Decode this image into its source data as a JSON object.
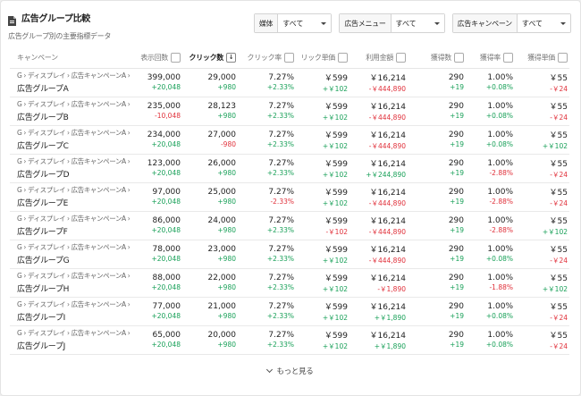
{
  "header": {
    "title": "広告グループ比較",
    "subtitle": "広告グループ別の主要指標データ"
  },
  "filters": [
    {
      "label": "媒体",
      "value": "すべて"
    },
    {
      "label": "広告メニュー",
      "value": "すべて"
    },
    {
      "label": "広告キャンペーン",
      "value": "すべて"
    }
  ],
  "table": {
    "columns": {
      "campaign": "キャンペーン",
      "impressions": "表示回数",
      "clicks": "クリック数",
      "ctr": "クリック率",
      "cpc": "リック単価",
      "cost": "利用金額",
      "conversions": "獲得数",
      "cvr": "獲得率",
      "cpa": "獲得単価"
    },
    "sort_icon": "↓",
    "rows": [
      {
        "path": "G › ディスプレイ › 広告キャンペーンA ›",
        "name": "広告グループA",
        "impressions": "399,000",
        "impressions_delta": "+20,048",
        "clicks": "29,000",
        "clicks_delta": "+980",
        "ctr": "7.27%",
        "ctr_delta": "+2.33%",
        "cpc": "￥599",
        "cpc_delta": "+￥102",
        "cost": "￥16,214",
        "cost_delta": "-￥444,890",
        "conv": "290",
        "conv_delta": "+19",
        "cvr": "1.00%",
        "cvr_delta": "+0.08%",
        "cpa": "￥55",
        "cpa_delta": "-￥24"
      },
      {
        "path": "G › ディスプレイ › 広告キャンペーンA ›",
        "name": "広告グループB",
        "impressions": "235,000",
        "impressions_delta": "-10,048",
        "clicks": "28,123",
        "clicks_delta": "+980",
        "ctr": "7.27%",
        "ctr_delta": "+2.33%",
        "cpc": "￥599",
        "cpc_delta": "+￥102",
        "cost": "￥16,214",
        "cost_delta": "-￥444,890",
        "conv": "290",
        "conv_delta": "+19",
        "cvr": "1.00%",
        "cvr_delta": "+0.08%",
        "cpa": "￥55",
        "cpa_delta": "-￥24"
      },
      {
        "path": "G › ディスプレイ › 広告キャンペーンA ›",
        "name": "広告グループC",
        "impressions": "234,000",
        "impressions_delta": "+20,048",
        "clicks": "27,000",
        "clicks_delta": "-980",
        "ctr": "7.27%",
        "ctr_delta": "+2.33%",
        "cpc": "￥599",
        "cpc_delta": "+￥102",
        "cost": "￥16,214",
        "cost_delta": "-￥444,890",
        "conv": "290",
        "conv_delta": "+19",
        "cvr": "1.00%",
        "cvr_delta": "+0.08%",
        "cpa": "￥55",
        "cpa_delta": "+￥102"
      },
      {
        "path": "G › ディスプレイ › 広告キャンペーンA ›",
        "name": "広告グループD",
        "impressions": "123,000",
        "impressions_delta": "+20,048",
        "clicks": "26,000",
        "clicks_delta": "+980",
        "ctr": "7.27%",
        "ctr_delta": "+2.33%",
        "cpc": "￥599",
        "cpc_delta": "+￥102",
        "cost": "￥16,214",
        "cost_delta": "+￥244,890",
        "conv": "290",
        "conv_delta": "+19",
        "cvr": "1.00%",
        "cvr_delta": "-2.88%",
        "cpa": "￥55",
        "cpa_delta": "-￥24"
      },
      {
        "path": "G › ディスプレイ › 広告キャンペーンA ›",
        "name": "広告グループE",
        "impressions": "97,000",
        "impressions_delta": "+20,048",
        "clicks": "25,000",
        "clicks_delta": "+980",
        "ctr": "7.27%",
        "ctr_delta": "-2.33%",
        "cpc": "￥599",
        "cpc_delta": "+￥102",
        "cost": "￥16,214",
        "cost_delta": "-￥444,890",
        "conv": "290",
        "conv_delta": "+19",
        "cvr": "1.00%",
        "cvr_delta": "-2.88%",
        "cpa": "￥55",
        "cpa_delta": "-￥24"
      },
      {
        "path": "G › ディスプレイ › 広告キャンペーンA ›",
        "name": "広告グループF",
        "impressions": "86,000",
        "impressions_delta": "+20,048",
        "clicks": "24,000",
        "clicks_delta": "+980",
        "ctr": "7.27%",
        "ctr_delta": "+2.33%",
        "cpc": "￥599",
        "cpc_delta": "-￥102",
        "cost": "￥16,214",
        "cost_delta": "-￥444,890",
        "conv": "290",
        "conv_delta": "+19",
        "cvr": "1.00%",
        "cvr_delta": "-2.88%",
        "cpa": "￥55",
        "cpa_delta": "+￥102"
      },
      {
        "path": "G › ディスプレイ › 広告キャンペーンA ›",
        "name": "広告グループG",
        "impressions": "78,000",
        "impressions_delta": "+20,048",
        "clicks": "23,000",
        "clicks_delta": "+980",
        "ctr": "7.27%",
        "ctr_delta": "+2.33%",
        "cpc": "￥599",
        "cpc_delta": "+￥102",
        "cost": "￥16,214",
        "cost_delta": "-￥444,890",
        "conv": "290",
        "conv_delta": "+19",
        "cvr": "1.00%",
        "cvr_delta": "+0.08%",
        "cpa": "￥55",
        "cpa_delta": "-￥24"
      },
      {
        "path": "G › ディスプレイ › 広告キャンペーンA ›",
        "name": "広告グループH",
        "impressions": "88,000",
        "impressions_delta": "+20,048",
        "clicks": "22,000",
        "clicks_delta": "+980",
        "ctr": "7.27%",
        "ctr_delta": "+2.33%",
        "cpc": "￥599",
        "cpc_delta": "+￥102",
        "cost": "￥16,214",
        "cost_delta": "-￥1,890",
        "conv": "290",
        "conv_delta": "+19",
        "cvr": "1.00%",
        "cvr_delta": "-1.88%",
        "cpa": "￥55",
        "cpa_delta": "+￥102"
      },
      {
        "path": "G › ディスプレイ › 広告キャンペーンA ›",
        "name": "広告グループI",
        "impressions": "77,000",
        "impressions_delta": "+20,048",
        "clicks": "21,000",
        "clicks_delta": "+980",
        "ctr": "7.27%",
        "ctr_delta": "+2.33%",
        "cpc": "￥599",
        "cpc_delta": "+￥102",
        "cost": "￥16,214",
        "cost_delta": "+￥1,890",
        "conv": "290",
        "conv_delta": "+19",
        "cvr": "1.00%",
        "cvr_delta": "+0.08%",
        "cpa": "￥55",
        "cpa_delta": "-￥24"
      },
      {
        "path": "G › ディスプレイ › 広告キャンペーンA ›",
        "name": "広告グループJ",
        "impressions": "65,000",
        "impressions_delta": "+20,048",
        "clicks": "20,000",
        "clicks_delta": "+980",
        "ctr": "7.27%",
        "ctr_delta": "+2.33%",
        "cpc": "￥599",
        "cpc_delta": "+￥102",
        "cost": "￥16,214",
        "cost_delta": "+￥1,890",
        "conv": "290",
        "conv_delta": "+19",
        "cvr": "1.00%",
        "cvr_delta": "+0.08%",
        "cpa": "￥55",
        "cpa_delta": "-￥24"
      }
    ]
  },
  "footer": {
    "more_label": "もっと見る"
  },
  "colors": {
    "positive": "#18a058",
    "negative": "#e0303a"
  }
}
